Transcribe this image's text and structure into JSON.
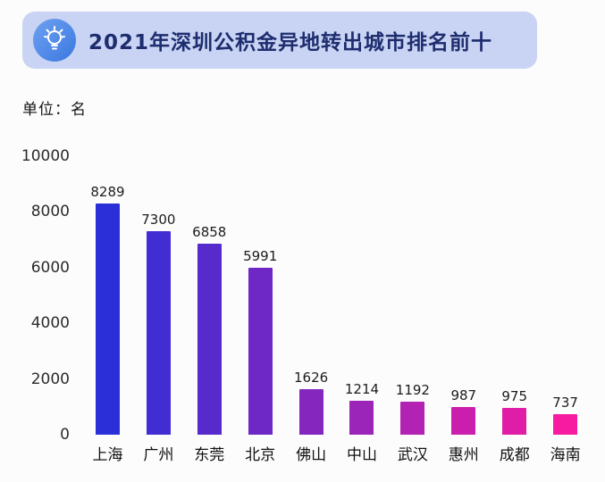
{
  "header": {
    "title": "2021年深圳公积金异地转出城市排名前十",
    "icon": "lightbulb-icon",
    "bg_color": "#c9d3f3",
    "text_color": "#1d2d6e"
  },
  "unit_label": "单位：名",
  "chart_data": {
    "type": "bar",
    "title": "2021年深圳公积金异地转出城市排名前十",
    "categories": [
      "上海",
      "广州",
      "东莞",
      "北京",
      "佛山",
      "中山",
      "武汉",
      "惠州",
      "成都",
      "海南"
    ],
    "values": [
      8289,
      7300,
      6858,
      5991,
      1626,
      1214,
      1192,
      987,
      975,
      737
    ],
    "xlabel": "",
    "ylabel": "单位：名",
    "ylim": [
      0,
      10000
    ],
    "yticks": [
      0,
      2000,
      4000,
      6000,
      8000,
      10000
    ],
    "grid": false,
    "legend": "none",
    "bar_colors": [
      "#2A2FD8",
      "#412DD2",
      "#572ACC",
      "#6E28C5",
      "#8526BF",
      "#9B24B9",
      "#B222B3",
      "#C91FAC",
      "#DF1DA6",
      "#F61BA0"
    ]
  }
}
